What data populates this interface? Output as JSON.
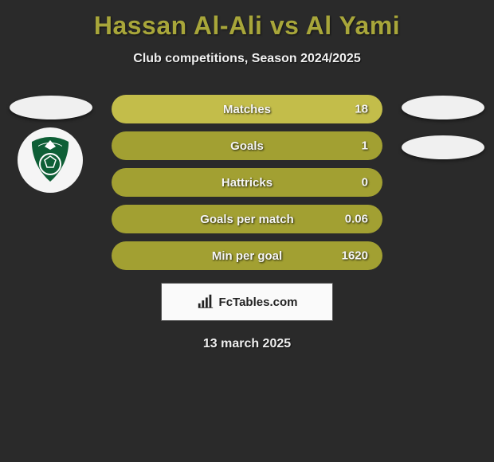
{
  "title": "Hassan Al-Ali vs Al Yami",
  "subtitle": "Club competitions, Season 2024/2025",
  "date": "13 march 2025",
  "brand": {
    "label": "FcTables.com",
    "icon_color": "#222222"
  },
  "colors": {
    "background": "#2a2a2a",
    "title": "#a8a63a",
    "bar_dark": "#a2a032",
    "bar_light": "#c3bd4a",
    "text": "#f5f5f5",
    "ellipse": "#f0f0f0",
    "box_bg": "#fafafa"
  },
  "stats": [
    {
      "label": "Matches",
      "value_right": "18",
      "shade": "light"
    },
    {
      "label": "Goals",
      "value_right": "1",
      "shade": "dark"
    },
    {
      "label": "Hattricks",
      "value_right": "0",
      "shade": "dark"
    },
    {
      "label": "Goals per match",
      "value_right": "0.06",
      "shade": "dark"
    },
    {
      "label": "Min per goal",
      "value_right": "1620",
      "shade": "dark"
    }
  ],
  "club_logo": {
    "crest_bg": "#f5f5f5",
    "shield": "#0e5f36",
    "accent": "#ffffff"
  }
}
